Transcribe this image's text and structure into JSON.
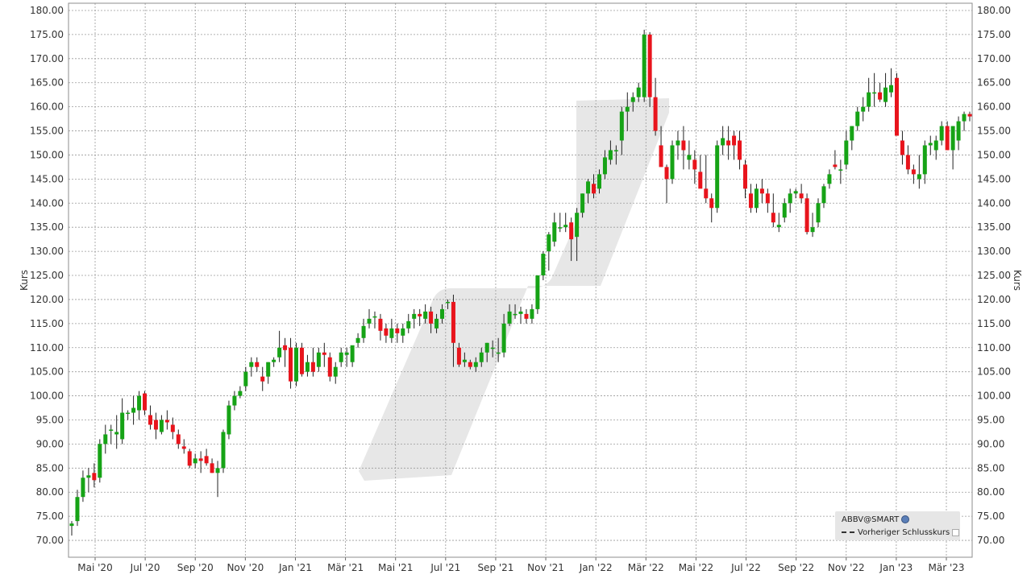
{
  "chart_data": {
    "type": "candlestick",
    "ylabel": "Kurs",
    "ylim": [
      66.5,
      181.5
    ],
    "y_ticks": [
      "70.00",
      "75.00",
      "80.00",
      "85.00",
      "90.00",
      "95.00",
      "100.00",
      "105.00",
      "110.00",
      "115.00",
      "120.00",
      "125.00",
      "130.00",
      "135.00",
      "140.00",
      "145.00",
      "150.00",
      "155.00",
      "160.00",
      "165.00",
      "170.00",
      "175.00",
      "180.00"
    ],
    "x_ticks": [
      "Mai '20",
      "Jul '20",
      "Sep '20",
      "Nov '20",
      "Jan '21",
      "Mär '21",
      "Mai '21",
      "Jul '21",
      "Sep '21",
      "Nov '21",
      "Jan '22",
      "Mär '22",
      "Mai '22",
      "Jul '22",
      "Sep '22",
      "Nov '22",
      "Jan '23",
      "Mär '23"
    ],
    "grid": true,
    "legend_position": "bottom-right",
    "legend": {
      "symbol": "ABBV@SMART",
      "prev_close_label": "Vorheriger Schlusskurs"
    },
    "colors": {
      "up": "#16a316",
      "down": "#e8141c",
      "wick": "#222222",
      "grid": "#9a9a9a"
    },
    "candles": [
      [
        73,
        74,
        71,
        73.5
      ],
      [
        74,
        80.5,
        73,
        79
      ],
      [
        79,
        84.5,
        78,
        83
      ],
      [
        83,
        85,
        80,
        83.5
      ],
      [
        84,
        86,
        81,
        82.5
      ],
      [
        83,
        91,
        82,
        90
      ],
      [
        90,
        94,
        88,
        92
      ],
      [
        93,
        94,
        90,
        93
      ],
      [
        92,
        96,
        89,
        92.5
      ],
      [
        91,
        99.5,
        90,
        96.5
      ],
      [
        96.5,
        97,
        95,
        96.5
      ],
      [
        96.5,
        100,
        94,
        97.5
      ],
      [
        97,
        101,
        95,
        100
      ],
      [
        100.5,
        101,
        96,
        97
      ],
      [
        96,
        98,
        93,
        94
      ],
      [
        95,
        96.5,
        91,
        93
      ],
      [
        92.5,
        96,
        92,
        95
      ],
      [
        95,
        97,
        93,
        94.5
      ],
      [
        94,
        95.5,
        91,
        92.5
      ],
      [
        92,
        93,
        89,
        90
      ],
      [
        89.5,
        91,
        88,
        89
      ],
      [
        88.5,
        89,
        85,
        85.5
      ],
      [
        86,
        88,
        85,
        87
      ],
      [
        87,
        88.5,
        84,
        86.5
      ],
      [
        87.5,
        89,
        85.5,
        86
      ],
      [
        86,
        87,
        84,
        84
      ],
      [
        84,
        86.5,
        79,
        85
      ],
      [
        85,
        93,
        84,
        92.5
      ],
      [
        92,
        99,
        91,
        98
      ],
      [
        98,
        101,
        97,
        100
      ],
      [
        100,
        102,
        99.5,
        101
      ],
      [
        102,
        106,
        101,
        105
      ],
      [
        106,
        108,
        104,
        107
      ],
      [
        107,
        108,
        105,
        106
      ],
      [
        104,
        106,
        101,
        103
      ],
      [
        104,
        107,
        102.5,
        107
      ],
      [
        107,
        108,
        106,
        107.5
      ],
      [
        108,
        113.5,
        107,
        110
      ],
      [
        110.5,
        112,
        106,
        109.5
      ],
      [
        110,
        112,
        101.5,
        103
      ],
      [
        103,
        111,
        102,
        110
      ],
      [
        110,
        111,
        104,
        104.5
      ],
      [
        105,
        108.5,
        104,
        107
      ],
      [
        107,
        110,
        104,
        105
      ],
      [
        106,
        110,
        105,
        109
      ],
      [
        109,
        111,
        106,
        108.5
      ],
      [
        108,
        109,
        103,
        104
      ],
      [
        104,
        107,
        102.5,
        106
      ],
      [
        107,
        110,
        106,
        109
      ],
      [
        108.5,
        110,
        106,
        109
      ],
      [
        107,
        110,
        106,
        110.5
      ],
      [
        111,
        113,
        110,
        112
      ],
      [
        112,
        116,
        111,
        114.5
      ],
      [
        115,
        118,
        114,
        116
      ],
      [
        116.5,
        117.5,
        114,
        116.5
      ],
      [
        116,
        117,
        111.5,
        113.5
      ],
      [
        114,
        115,
        111,
        112.5
      ],
      [
        112,
        116,
        111,
        114
      ],
      [
        114,
        115,
        111,
        113
      ],
      [
        112.5,
        115,
        111,
        114
      ],
      [
        114,
        117,
        113,
        115.5
      ],
      [
        116,
        118,
        114,
        117
      ],
      [
        117,
        118,
        114.5,
        116.5
      ],
      [
        116,
        119,
        115,
        117.5
      ],
      [
        117.5,
        118.5,
        113,
        115
      ],
      [
        114,
        117,
        113,
        116
      ],
      [
        116,
        119,
        115,
        118
      ],
      [
        119.5,
        120,
        118,
        119.5
      ],
      [
        119.5,
        121,
        106,
        111
      ],
      [
        110,
        111,
        106,
        106.5
      ],
      [
        107,
        109,
        106,
        107.5
      ],
      [
        107,
        107.5,
        105.5,
        106
      ],
      [
        106,
        108,
        105,
        107
      ],
      [
        107,
        110,
        106,
        109
      ],
      [
        109,
        111,
        107,
        111
      ],
      [
        110,
        111.5,
        108,
        110
      ],
      [
        109,
        112,
        107,
        109
      ],
      [
        109,
        117,
        108,
        115
      ],
      [
        115,
        119,
        114.5,
        117.5
      ],
      [
        117,
        119,
        116,
        117
      ],
      [
        117,
        118.5,
        115,
        117.5
      ],
      [
        117,
        118,
        115,
        116
      ],
      [
        116,
        119,
        115,
        118
      ],
      [
        118,
        125,
        117,
        125
      ],
      [
        125,
        130,
        124,
        129.5
      ],
      [
        130,
        134,
        126,
        133.5
      ],
      [
        132,
        138,
        131,
        136
      ],
      [
        135,
        138,
        134,
        135
      ],
      [
        135,
        138,
        134,
        135.5
      ],
      [
        136,
        137,
        128,
        132.5
      ],
      [
        133,
        139,
        128,
        138
      ],
      [
        138,
        142,
        137,
        142
      ],
      [
        142,
        145,
        140,
        144.5
      ],
      [
        144,
        146,
        141,
        142
      ],
      [
        143,
        147,
        142,
        146
      ],
      [
        146,
        151,
        145,
        149.5
      ],
      [
        149,
        153,
        148,
        151
      ],
      [
        151,
        152,
        148,
        151
      ],
      [
        153,
        160,
        150,
        159
      ],
      [
        159,
        163,
        155,
        160
      ],
      [
        161,
        163,
        159,
        162
      ],
      [
        162,
        165,
        161,
        164
      ],
      [
        162,
        176,
        161,
        175
      ],
      [
        175,
        175.5,
        160,
        162
      ],
      [
        162,
        166,
        154,
        155
      ],
      [
        152,
        156,
        148,
        147.5
      ],
      [
        147.5,
        148,
        140,
        145
      ],
      [
        145,
        153,
        144,
        152
      ],
      [
        152,
        155,
        149,
        153
      ],
      [
        153,
        156,
        147,
        151
      ],
      [
        149,
        153,
        147,
        150
      ],
      [
        149,
        151,
        144,
        147
      ],
      [
        146.5,
        150,
        144,
        143
      ],
      [
        143,
        150,
        140,
        141
      ],
      [
        141,
        142,
        136,
        139
      ],
      [
        139,
        153,
        138,
        152
      ],
      [
        152,
        156,
        150,
        153.5
      ],
      [
        153,
        156,
        149,
        152
      ],
      [
        154,
        155,
        149,
        152
      ],
      [
        153,
        155,
        147,
        149
      ],
      [
        148,
        149,
        141,
        143
      ],
      [
        142,
        144,
        138,
        139
      ],
      [
        139,
        144,
        138,
        143
      ],
      [
        143,
        145,
        140,
        142
      ],
      [
        142,
        143,
        138,
        140
      ],
      [
        138,
        142,
        135,
        136
      ],
      [
        135,
        138,
        134,
        135.5
      ],
      [
        137,
        141,
        136,
        140
      ],
      [
        140,
        143,
        138,
        142
      ],
      [
        142,
        143,
        141,
        142.5
      ],
      [
        142,
        144,
        140,
        141
      ],
      [
        141,
        142,
        133.5,
        134
      ],
      [
        134,
        138,
        133,
        135
      ],
      [
        136,
        141,
        135,
        140
      ],
      [
        140,
        144,
        139,
        143.5
      ],
      [
        144,
        147,
        143,
        146
      ],
      [
        148,
        151,
        147,
        147.5
      ],
      [
        147,
        149,
        144,
        147
      ],
      [
        148,
        155,
        147,
        153
      ],
      [
        153,
        156,
        151,
        156
      ],
      [
        156,
        160,
        155,
        159
      ],
      [
        159,
        162,
        157,
        160
      ],
      [
        160,
        166,
        159,
        163
      ],
      [
        163,
        167,
        160,
        163
      ],
      [
        163,
        165,
        161,
        161.5
      ],
      [
        161,
        167,
        160,
        164
      ],
      [
        163,
        168,
        162,
        164.5
      ],
      [
        166,
        167,
        155,
        154
      ],
      [
        153,
        155,
        148,
        150
      ],
      [
        150,
        152,
        146,
        147
      ],
      [
        147,
        148,
        144,
        146
      ],
      [
        145,
        150,
        143,
        146
      ],
      [
        146,
        153,
        144,
        152
      ],
      [
        152,
        154,
        150,
        152.5
      ],
      [
        151,
        154,
        149,
        153
      ],
      [
        153,
        157,
        152,
        156
      ],
      [
        156,
        157,
        151,
        151
      ],
      [
        151,
        156,
        147,
        156
      ],
      [
        153,
        158,
        151,
        157
      ],
      [
        157,
        159,
        155,
        158.5
      ],
      [
        158.5,
        159,
        157,
        158
      ]
    ]
  }
}
